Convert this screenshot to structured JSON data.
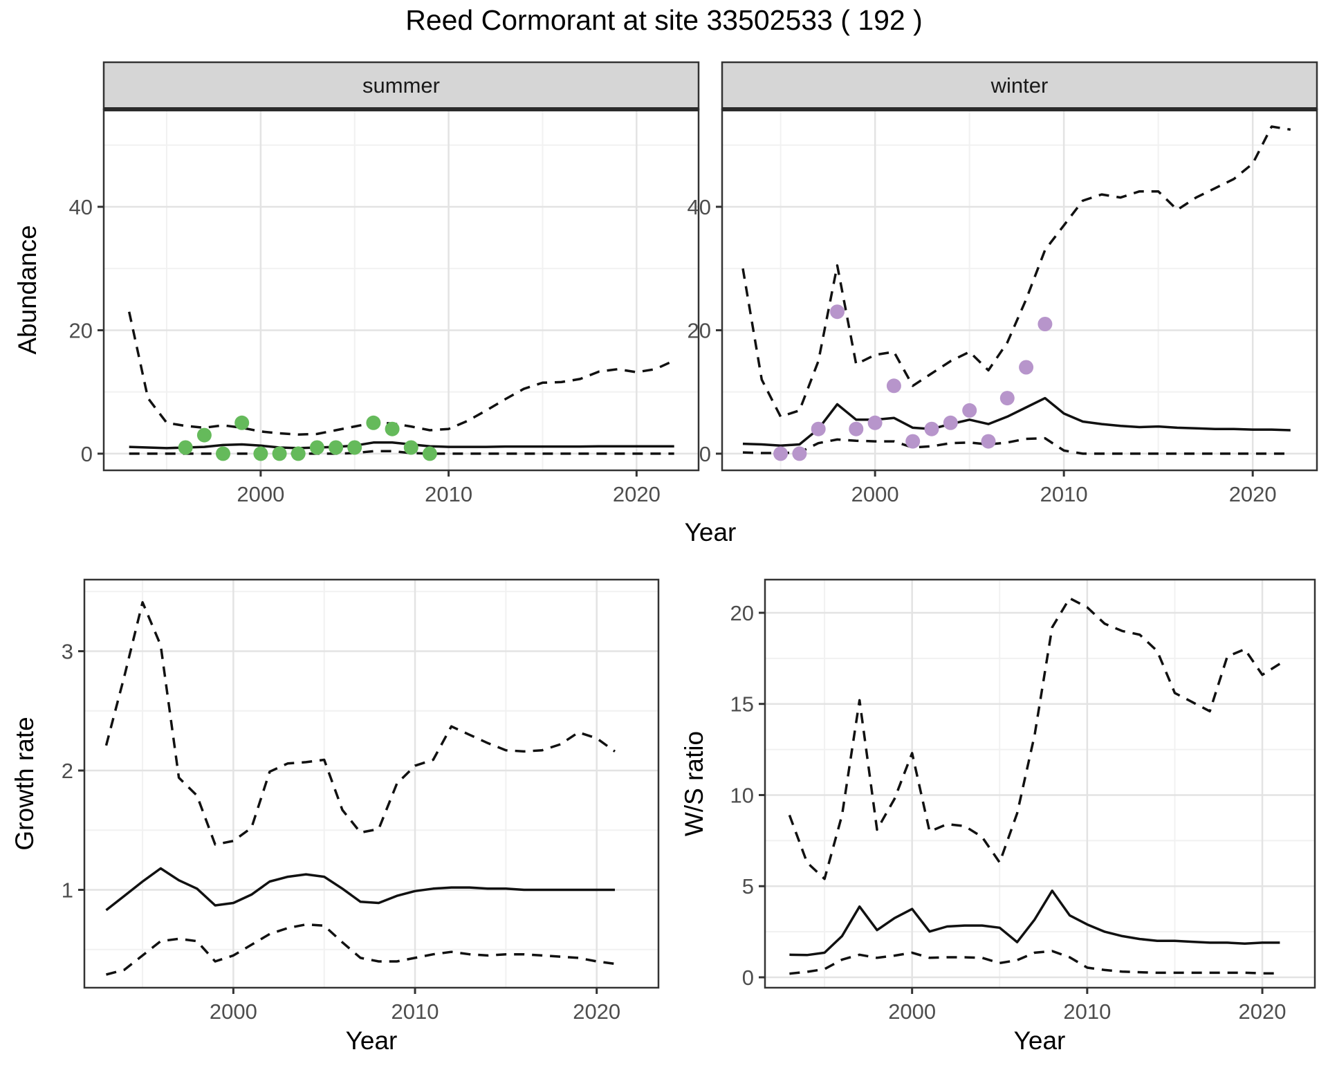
{
  "title": "Reed Cormorant at site 33502533 ( 192 )",
  "labels": {
    "abundance_axis": "Abundance",
    "growth_axis": "Growth rate",
    "ws_axis": "W/S ratio",
    "year_axis_top": "Year",
    "year_axis_growth": "Year",
    "year_axis_ws": "Year",
    "facet_summer": "summer",
    "facet_winter": "winter"
  },
  "chart_data": {
    "type": "line",
    "title": "Reed Cormorant at site 33502533 ( 192 )",
    "facets": [
      "summer",
      "winter"
    ],
    "legend_position": "none",
    "grid": "on",
    "colors": {
      "summer_points": "#65BA5B",
      "winter_points": "#B795CB",
      "line": "#111111",
      "grid_major": "#E3E3E3",
      "grid_minor": "#F1F1F1",
      "strip_fill": "#D6D6D6",
      "border": "#333333",
      "tick_label": "#4D4D4D",
      "tick_mark": "#333333"
    },
    "panels": [
      {
        "id": "abundance-summer",
        "facet_label": "summer",
        "xlabel": "Year",
        "ylabel": "Abundance",
        "xlim": [
          1991.65,
          2023.3
        ],
        "ylim": [
          -2.7,
          55.8
        ],
        "x_ticks": {
          "values": [
            2000,
            2010,
            2020
          ],
          "labels": [
            "2000",
            "2010",
            "2020"
          ],
          "minor": [
            1995,
            2005,
            2015
          ]
        },
        "y_ticks": {
          "values": [
            0,
            20,
            40
          ],
          "labels": [
            "0",
            "20",
            "40"
          ],
          "minor": [
            10,
            30,
            50
          ]
        },
        "years": [
          1993,
          1994,
          1995,
          1996,
          1997,
          1998,
          1999,
          2000,
          2001,
          2002,
          2003,
          2004,
          2005,
          2006,
          2007,
          2008,
          2009,
          2010,
          2011,
          2012,
          2013,
          2014,
          2015,
          2016,
          2017,
          2018,
          2019,
          2020,
          2021,
          2022
        ],
        "series": [
          {
            "name": "estimate",
            "style": "solid",
            "values": [
              1.1,
              1.0,
              0.9,
              1.0,
              1.1,
              1.4,
              1.5,
              1.3,
              1.0,
              0.9,
              1.0,
              1.1,
              1.3,
              1.8,
              1.8,
              1.5,
              1.2,
              1.1,
              1.1,
              1.1,
              1.15,
              1.15,
              1.15,
              1.15,
              1.15,
              1.2,
              1.2,
              1.2,
              1.2,
              1.2
            ]
          },
          {
            "name": "lower-95ci",
            "style": "dashed",
            "values": [
              0,
              0,
              0,
              0,
              0,
              0,
              0,
              0,
              0,
              0,
              0,
              0,
              0.1,
              0.4,
              0.4,
              0.1,
              0,
              0,
              0,
              0,
              0,
              0,
              0,
              0,
              0,
              0,
              0,
              0,
              0,
              0
            ]
          },
          {
            "name": "upper-95ci",
            "style": "dashed",
            "values": [
              23,
              9,
              5,
              4.5,
              4.2,
              4.6,
              4.2,
              3.6,
              3.3,
              3.1,
              3.2,
              3.8,
              4.4,
              5.0,
              4.9,
              4.4,
              3.8,
              4.0,
              5.3,
              7.0,
              8.8,
              10.5,
              11.5,
              11.6,
              12.1,
              13.3,
              13.7,
              13.2,
              13.7,
              15.1
            ]
          }
        ],
        "points": {
          "name": "summer-counts",
          "color_key": "summer_points",
          "years": [
            1996,
            1997,
            1998,
            1999,
            2000,
            2001,
            2002,
            2003,
            2004,
            2005,
            2006,
            2007,
            2008,
            2009
          ],
          "values": [
            1,
            3,
            0,
            5,
            0,
            0,
            0,
            1,
            1,
            1,
            5,
            4,
            1,
            0
          ]
        }
      },
      {
        "id": "abundance-winter",
        "facet_label": "winter",
        "xlabel": "Year",
        "ylabel": "Abundance",
        "xlim": [
          1991.9,
          2023.4
        ],
        "ylim": [
          -2.7,
          55.8
        ],
        "x_ticks": {
          "values": [
            2000,
            2010,
            2020
          ],
          "labels": [
            "2000",
            "2010",
            "2020"
          ],
          "minor": [
            1995,
            2005,
            2015
          ]
        },
        "y_ticks": {
          "values": [
            0,
            20,
            40
          ],
          "labels": [
            "0",
            "20",
            "40"
          ],
          "minor": [
            10,
            30,
            50
          ]
        },
        "years": [
          1993,
          1994,
          1995,
          1996,
          1997,
          1998,
          1999,
          2000,
          2001,
          2002,
          2003,
          2004,
          2005,
          2006,
          2007,
          2008,
          2009,
          2010,
          2011,
          2012,
          2013,
          2014,
          2015,
          2016,
          2017,
          2018,
          2019,
          2020,
          2021,
          2022
        ],
        "series": [
          {
            "name": "estimate",
            "style": "solid",
            "values": [
              1.6,
              1.5,
              1.3,
              1.5,
              4.0,
              8.0,
              5.5,
              5.5,
              5.8,
              4.2,
              4.0,
              4.8,
              5.5,
              4.8,
              6.0,
              7.5,
              9.0,
              6.5,
              5.2,
              4.8,
              4.5,
              4.3,
              4.4,
              4.2,
              4.1,
              4.0,
              4.0,
              3.9,
              3.9,
              3.8
            ]
          },
          {
            "name": "lower-95ci",
            "style": "dashed",
            "values": [
              0.2,
              0.1,
              0.1,
              0.2,
              1.7,
              2.3,
              2.1,
              2.0,
              2.0,
              1.0,
              1.2,
              1.7,
              1.8,
              1.5,
              1.8,
              2.4,
              2.5,
              0.5,
              0,
              0,
              0,
              0,
              0,
              0,
              0,
              0,
              0,
              0,
              0,
              0
            ]
          },
          {
            "name": "upper-95ci",
            "style": "dashed",
            "values": [
              30,
              12,
              6,
              7,
              15,
              30.5,
              14.5,
              16,
              16.5,
              11,
              13,
              15,
              16.5,
              13.5,
              18,
              25,
              33,
              37,
              41,
              42,
              41.5,
              42.5,
              42.5,
              39.5,
              41.5,
              43,
              44.5,
              47,
              53,
              52.5
            ]
          }
        ],
        "points": {
          "name": "winter-counts",
          "color_key": "winter_points",
          "years": [
            1995,
            1996,
            1997,
            1998,
            1999,
            2000,
            2001,
            2002,
            2003,
            2004,
            2005,
            2006,
            2007,
            2008,
            2009
          ],
          "values": [
            0,
            0,
            4,
            23,
            4,
            5,
            11,
            2,
            4,
            5,
            7,
            2,
            9,
            14,
            21
          ]
        }
      },
      {
        "id": "growth-rate",
        "facet_label": "",
        "xlabel": "Year",
        "ylabel": "Growth rate",
        "xlim": [
          1991.8,
          2023.4
        ],
        "ylim": [
          0.18,
          3.6
        ],
        "x_ticks": {
          "values": [
            2000,
            2010,
            2020
          ],
          "labels": [
            "2000",
            "2010",
            "2020"
          ],
          "minor": [
            1995,
            2005,
            2015
          ]
        },
        "y_ticks": {
          "values": [
            1,
            2,
            3
          ],
          "labels": [
            "1",
            "2",
            "3"
          ],
          "minor": [
            0.5,
            1.5,
            2.5,
            3.5
          ]
        },
        "years": [
          1993,
          1994,
          1995,
          1996,
          1997,
          1998,
          1999,
          2000,
          2001,
          2002,
          2003,
          2004,
          2005,
          2006,
          2007,
          2008,
          2009,
          2010,
          2011,
          2012,
          2013,
          2014,
          2015,
          2016,
          2017,
          2018,
          2019,
          2020,
          2021
        ],
        "series": [
          {
            "name": "estimate",
            "style": "solid",
            "values": [
              0.83,
              0.95,
              1.07,
              1.18,
              1.08,
              1.01,
              0.87,
              0.89,
              0.96,
              1.07,
              1.11,
              1.13,
              1.11,
              1.01,
              0.9,
              0.89,
              0.95,
              0.99,
              1.01,
              1.02,
              1.02,
              1.01,
              1.01,
              1.0,
              1.0,
              1.0,
              1.0,
              1.0,
              1.0
            ]
          },
          {
            "name": "lower-95ci",
            "style": "dashed",
            "values": [
              0.29,
              0.33,
              0.45,
              0.57,
              0.59,
              0.57,
              0.4,
              0.45,
              0.54,
              0.63,
              0.68,
              0.71,
              0.7,
              0.56,
              0.43,
              0.4,
              0.4,
              0.43,
              0.46,
              0.48,
              0.46,
              0.45,
              0.46,
              0.46,
              0.45,
              0.44,
              0.43,
              0.4,
              0.38
            ]
          },
          {
            "name": "upper-95ci",
            "style": "dashed",
            "values": [
              2.21,
              2.79,
              3.41,
              3.05,
              1.94,
              1.79,
              1.38,
              1.41,
              1.52,
              1.99,
              2.06,
              2.07,
              2.09,
              1.67,
              1.48,
              1.51,
              1.89,
              2.04,
              2.09,
              2.37,
              2.3,
              2.23,
              2.17,
              2.16,
              2.17,
              2.22,
              2.32,
              2.27,
              2.16
            ]
          }
        ]
      },
      {
        "id": "ws-ratio",
        "facet_label": "",
        "xlabel": "Year",
        "ylabel": "W/S ratio",
        "xlim": [
          1991.6,
          2023.0
        ],
        "ylim": [
          -0.57,
          21.82
        ],
        "x_ticks": {
          "values": [
            2000,
            2010,
            2020
          ],
          "labels": [
            "2000",
            "2010",
            "2020"
          ],
          "minor": [
            1995,
            2005,
            2015
          ]
        },
        "y_ticks": {
          "values": [
            0,
            5,
            10,
            15,
            20
          ],
          "labels": [
            "0",
            "5",
            "10",
            "15",
            "20"
          ],
          "minor": [
            2.5,
            7.5,
            12.5,
            17.5
          ]
        },
        "years": [
          1993,
          1994,
          1995,
          1996,
          1997,
          1998,
          1999,
          2000,
          2001,
          2002,
          2003,
          2004,
          2005,
          2006,
          2007,
          2008,
          2009,
          2010,
          2011,
          2012,
          2013,
          2014,
          2015,
          2016,
          2017,
          2018,
          2019,
          2020,
          2021
        ],
        "series": [
          {
            "name": "estimate",
            "style": "solid",
            "values": [
              1.24,
              1.22,
              1.35,
              2.26,
              3.88,
              2.59,
              3.25,
              3.75,
              2.51,
              2.79,
              2.84,
              2.84,
              2.72,
              1.93,
              3.17,
              4.75,
              3.4,
              2.9,
              2.5,
              2.26,
              2.1,
              2.0,
              2.0,
              1.95,
              1.9,
              1.9,
              1.85,
              1.9,
              1.9
            ]
          },
          {
            "name": "lower-95ci",
            "style": "dashed",
            "values": [
              0.2,
              0.3,
              0.45,
              0.97,
              1.24,
              1.07,
              1.19,
              1.35,
              1.07,
              1.1,
              1.1,
              1.07,
              0.78,
              0.94,
              1.35,
              1.44,
              1.1,
              0.53,
              0.4,
              0.31,
              0.28,
              0.25,
              0.25,
              0.25,
              0.25,
              0.25,
              0.25,
              0.22,
              0.22
            ]
          },
          {
            "name": "upper-95ci",
            "style": "dashed",
            "values": [
              8.9,
              6.3,
              5.4,
              8.9,
              15.2,
              8.1,
              9.8,
              12.3,
              8.0,
              8.4,
              8.3,
              7.7,
              6.3,
              9.0,
              13.3,
              19.2,
              20.8,
              20.3,
              19.4,
              19.0,
              18.8,
              17.9,
              15.6,
              15.1,
              14.6,
              17.6,
              18.0,
              16.6,
              17.2
            ]
          }
        ]
      }
    ]
  }
}
